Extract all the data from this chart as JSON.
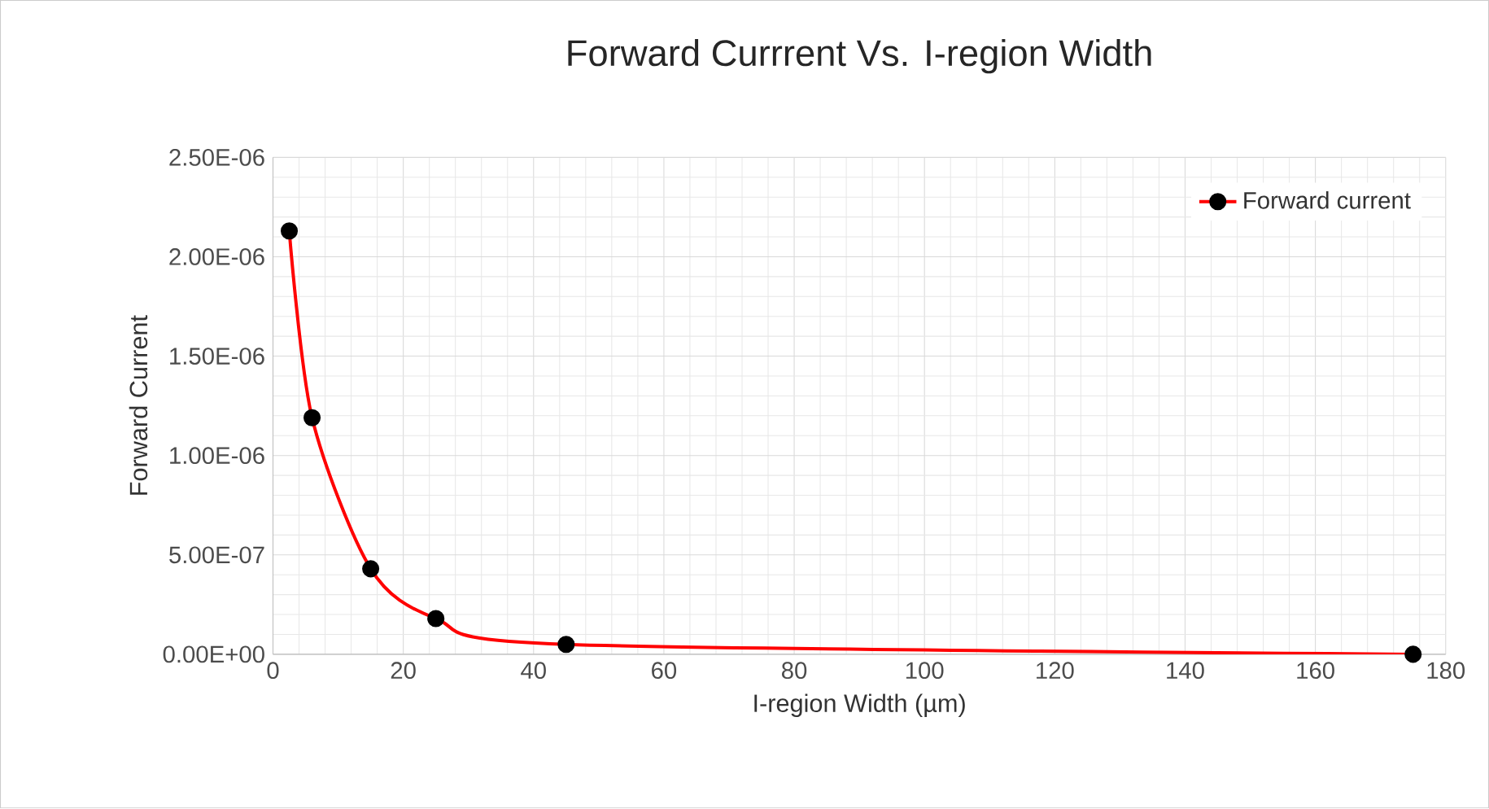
{
  "chart_data": {
    "type": "line",
    "title": "Forward Currrent Vs. I-region Width",
    "xlabel": "I-region Width (µm)",
    "ylabel": "Forward Current",
    "x": [
      2.5,
      6,
      15,
      25,
      45,
      175
    ],
    "series": [
      {
        "name": "Forward current",
        "color": "#ff0000",
        "values": [
          2.13e-06,
          1.19e-06,
          4.3e-07,
          1.8e-07,
          5e-08,
          0
        ]
      }
    ],
    "xlim": [
      0,
      180
    ],
    "xticks": [
      0,
      20,
      40,
      60,
      80,
      100,
      120,
      140,
      160,
      180
    ],
    "ylim": [
      0,
      2.5e-06
    ],
    "yticks": [
      {
        "value": 0,
        "label": "0.00E+00"
      },
      {
        "value": 5e-07,
        "label": "5.00E-07"
      },
      {
        "value": 1e-06,
        "label": "1.00E-06"
      },
      {
        "value": 1.5e-06,
        "label": "1.50E-06"
      },
      {
        "value": 2e-06,
        "label": "2.00E-06"
      },
      {
        "value": 2.5e-06,
        "label": "2.50E-06"
      }
    ],
    "grid": true,
    "legend": "top right",
    "marker": "circle"
  }
}
